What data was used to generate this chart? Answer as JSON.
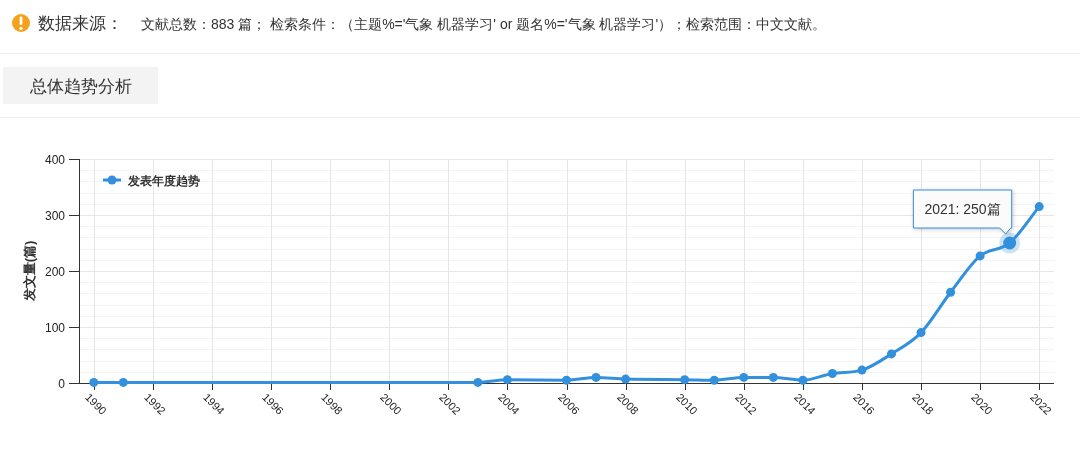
{
  "chart_data": {
    "type": "line",
    "title": "总体趋势分析",
    "ylabel": "发文量(篇)",
    "x": [
      1990,
      1991,
      2003,
      2004,
      2006,
      2007,
      2008,
      2010,
      2011,
      2012,
      2013,
      2014,
      2015,
      2016,
      2017,
      2018,
      2019,
      2020,
      2021,
      2022
    ],
    "series": [
      {
        "name": "发表年度趋势",
        "color": "#3390dc",
        "values": [
          1,
          1,
          1,
          6,
          5,
          10,
          7,
          6,
          5,
          10,
          10,
          5,
          17,
          23,
          52,
          90,
          162,
          227,
          250,
          315
        ]
      }
    ],
    "xlim": [
      1989.5,
      2022.5
    ],
    "xticks": [
      1990,
      1992,
      1994,
      1996,
      1998,
      2000,
      2002,
      2004,
      2006,
      2008,
      2010,
      2012,
      2014,
      2016,
      2018,
      2020,
      2022
    ],
    "ylim": [
      0,
      400
    ],
    "yticks": [
      0,
      {
        "value": 20,
        "label": null
      },
      {
        "value": 40,
        "label": null
      },
      {
        "value": 60,
        "label": null
      },
      {
        "value": 80,
        "label": null
      },
      100,
      {
        "value": 120,
        "label": null
      },
      {
        "value": 140,
        "label": null
      },
      {
        "value": 160,
        "label": null
      },
      {
        "value": 180,
        "label": null
      },
      200,
      {
        "value": 220,
        "label": null
      },
      {
        "value": 240,
        "label": null
      },
      {
        "value": 260,
        "label": null
      },
      {
        "value": 280,
        "label": null
      },
      300,
      {
        "value": 320,
        "label": null
      },
      {
        "value": 340,
        "label": null
      },
      {
        "value": 360,
        "label": null
      },
      {
        "value": 380,
        "label": null
      },
      400
    ],
    "grid": true,
    "legend": "top left",
    "marker": "circle",
    "line_style": "solid",
    "annotations": [
      "数据来源：",
      "文献总数：883 篇；  检索条件：（主题%='气象 机器学习' or 题名%='气象 机器学习'）；检索范围：中文文献。",
      {
        "text": "2021: 250篇",
        "x": 2021,
        "y": 250
      }
    ]
  }
}
